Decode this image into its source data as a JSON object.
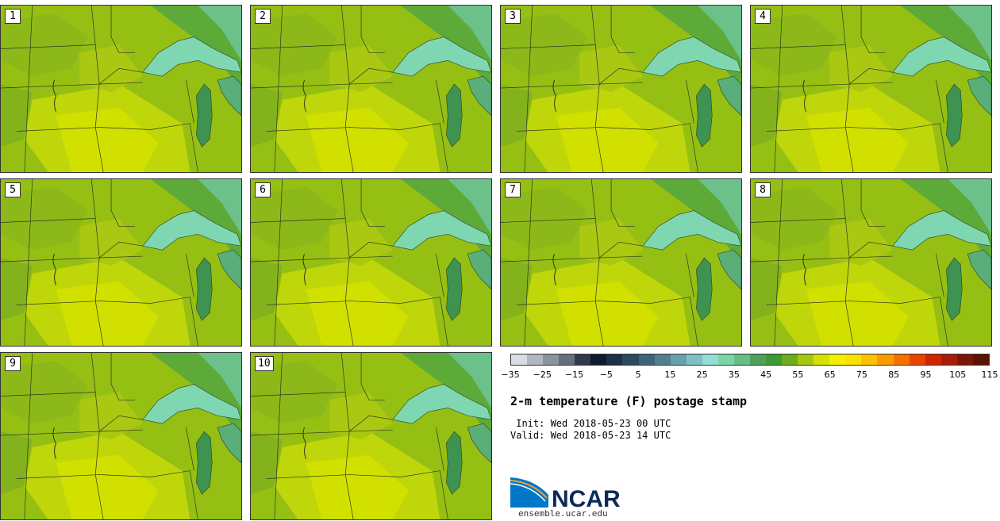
{
  "product_title": "2-m temperature (F) postage stamp",
  "init_line": " Init: Wed 2018-05-23 00 UTC",
  "valid_line": "Valid: Wed 2018-05-23 14 UTC",
  "members": [
    "1",
    "2",
    "3",
    "4",
    "5",
    "6",
    "7",
    "8",
    "9",
    "10"
  ],
  "colorbar": {
    "unit": "F",
    "ticks": [
      "−35",
      "−25",
      "−15",
      "−5",
      "5",
      "15",
      "25",
      "35",
      "45",
      "55",
      "65",
      "75",
      "85",
      "95",
      "105",
      "115"
    ],
    "colors": [
      "#d8dde3",
      "#b0b7bf",
      "#8a939e",
      "#656f7d",
      "#303a4d",
      "#0e1a2e",
      "#1c3146",
      "#2c4a5e",
      "#3e6478",
      "#527f8f",
      "#67a0a8",
      "#7fc0c2",
      "#96dcd6",
      "#7dd4a4",
      "#66be82",
      "#4ea05c",
      "#3c9a34",
      "#6bad1e",
      "#a4c810",
      "#d4e000",
      "#f2f000",
      "#fbe000",
      "#fdc000",
      "#fb9a00",
      "#f57000",
      "#e84400",
      "#cc2600",
      "#a81c0c",
      "#7a1808",
      "#5c1204"
    ]
  },
  "logo": {
    "name": "NCAR",
    "url": "ensemble.ucar.edu"
  }
}
